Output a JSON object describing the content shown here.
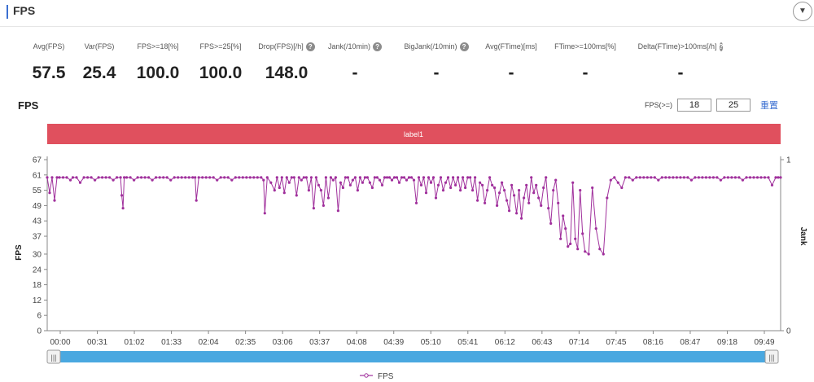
{
  "header": {
    "title": "FPS"
  },
  "metrics": [
    {
      "label": "Avg(FPS)",
      "value": "57.5",
      "help": false
    },
    {
      "label": "Var(FPS)",
      "value": "25.4",
      "help": false
    },
    {
      "label": "FPS>=18[%]",
      "value": "100.0",
      "help": false
    },
    {
      "label": "FPS>=25[%]",
      "value": "100.0",
      "help": false
    },
    {
      "label": "Drop(FPS)[/h]",
      "value": "148.0",
      "help": true
    },
    {
      "label": "Jank(/10min)",
      "value": "-",
      "help": true
    },
    {
      "label": "BigJank(/10min)",
      "value": "-",
      "help": true
    },
    {
      "label": "Avg(FTime)[ms]",
      "value": "-",
      "help": false
    },
    {
      "label": "FTime>=100ms[%]",
      "value": "-",
      "help": false
    },
    {
      "label": "Delta(FTime)>100ms[/h]",
      "value": "-",
      "help": true
    }
  ],
  "chart_section": {
    "title": "FPS",
    "filter_label": "FPS(>=)",
    "filter_low": "18",
    "filter_high": "25",
    "reset_label": "重置"
  },
  "colors": {
    "accent": "#3b6fd1",
    "label_band": "#e0505e",
    "series": "#a0309c",
    "scrollbar": "#4aa8e0"
  },
  "chart_data": {
    "type": "line",
    "title": "",
    "band_label": "label1",
    "ylabel": "FPS",
    "y2label": "Jank",
    "ylim": [
      0,
      67
    ],
    "yticks": [
      0,
      6,
      12,
      18,
      24,
      30,
      37,
      43,
      49,
      55,
      61,
      67
    ],
    "y2lim": [
      0,
      1
    ],
    "y2ticks": [
      0,
      1
    ],
    "xlim_seconds": [
      0,
      600
    ],
    "xtick_labels": [
      "00:00",
      "00:31",
      "01:02",
      "01:33",
      "02:04",
      "02:35",
      "03:06",
      "03:37",
      "04:08",
      "04:39",
      "05:10",
      "05:41",
      "06:12",
      "06:43",
      "07:14",
      "07:45",
      "08:16",
      "08:47",
      "09:18",
      "09:49"
    ],
    "legend": "FPS",
    "legend_position": "bottom-center",
    "grid": false,
    "series": [
      {
        "name": "FPS",
        "x": [
          0,
          2,
          4,
          6,
          8,
          10,
          13,
          16,
          19,
          21,
          24,
          27,
          30,
          33,
          36,
          39,
          42,
          45,
          48,
          51,
          54,
          57,
          60,
          61,
          62,
          63,
          65,
          68,
          71,
          74,
          77,
          80,
          83,
          86,
          89,
          92,
          95,
          98,
          101,
          104,
          107,
          110,
          113,
          116,
          119,
          121,
          122,
          124,
          127,
          130,
          133,
          136,
          139,
          142,
          145,
          148,
          151,
          154,
          157,
          160,
          163,
          166,
          169,
          172,
          175,
          177,
          178,
          180,
          183,
          186,
          188,
          190,
          192,
          194,
          196,
          198,
          200,
          202,
          204,
          206,
          208,
          210,
          212,
          214,
          216,
          218,
          220,
          222,
          224,
          226,
          228,
          230,
          232,
          234,
          236,
          238,
          240,
          242,
          244,
          246,
          248,
          250,
          252,
          254,
          256,
          258,
          260,
          262,
          264,
          266,
          268,
          270,
          272,
          274,
          276,
          278,
          280,
          282,
          284,
          286,
          288,
          290,
          292,
          294,
          296,
          298,
          300,
          302,
          304,
          306,
          308,
          310,
          312,
          314,
          316,
          318,
          320,
          322,
          324,
          326,
          328,
          330,
          332,
          334,
          336,
          338,
          340,
          342,
          344,
          346,
          348,
          350,
          352,
          354,
          356,
          358,
          360,
          362,
          364,
          366,
          368,
          370,
          372,
          374,
          376,
          378,
          380,
          382,
          384,
          386,
          388,
          390,
          392,
          394,
          396,
          398,
          400,
          402,
          404,
          406,
          408,
          410,
          412,
          414,
          416,
          418,
          420,
          422,
          424,
          426,
          428,
          430,
          432,
          434,
          436,
          438,
          440,
          443,
          446,
          449,
          452,
          455,
          458,
          461,
          464,
          467,
          470,
          473,
          476,
          479,
          482,
          485,
          488,
          491,
          494,
          497,
          500,
          503,
          506,
          509,
          512,
          515,
          518,
          521,
          524,
          527,
          530,
          533,
          536,
          539,
          542,
          545,
          548,
          551,
          554,
          557,
          560,
          563,
          566,
          569,
          572,
          575,
          578,
          581,
          584,
          587,
          590,
          593,
          596,
          598,
          600
        ],
        "values": [
          60,
          54,
          60,
          51,
          60,
          60,
          60,
          60,
          59,
          60,
          60,
          58,
          60,
          60,
          60,
          59,
          60,
          60,
          60,
          60,
          59,
          60,
          60,
          53,
          48,
          60,
          60,
          60,
          59,
          60,
          60,
          60,
          60,
          59,
          60,
          60,
          60,
          60,
          59,
          60,
          60,
          60,
          60,
          60,
          60,
          60,
          51,
          60,
          60,
          60,
          60,
          60,
          59,
          60,
          60,
          60,
          59,
          60,
          60,
          60,
          60,
          60,
          60,
          60,
          60,
          59,
          46,
          60,
          58,
          55,
          60,
          56,
          60,
          54,
          60,
          58,
          60,
          60,
          53,
          60,
          59,
          60,
          60,
          55,
          60,
          48,
          60,
          57,
          55,
          49,
          60,
          52,
          60,
          59,
          60,
          47,
          58,
          56,
          60,
          60,
          57,
          59,
          60,
          55,
          60,
          58,
          60,
          60,
          58,
          56,
          60,
          60,
          59,
          57,
          60,
          60,
          60,
          59,
          60,
          60,
          58,
          60,
          60,
          59,
          60,
          60,
          59,
          50,
          60,
          57,
          60,
          54,
          60,
          58,
          60,
          52,
          57,
          60,
          55,
          58,
          60,
          56,
          60,
          57,
          60,
          55,
          60,
          56,
          60,
          60,
          55,
          60,
          51,
          58,
          57,
          50,
          55,
          60,
          57,
          56,
          49,
          54,
          58,
          55,
          51,
          47,
          57,
          53,
          46,
          55,
          44,
          52,
          57,
          50,
          60,
          54,
          57,
          52,
          49,
          56,
          60,
          48,
          42,
          55,
          59,
          50,
          36,
          45,
          40,
          33,
          34,
          58,
          36,
          32,
          55,
          38,
          31,
          30,
          56,
          40,
          32,
          30,
          52,
          59,
          60,
          58,
          56,
          60,
          60,
          59,
          60,
          60,
          60,
          60,
          60,
          60,
          59,
          60,
          60,
          60,
          60,
          60,
          60,
          60,
          60,
          59,
          60,
          60,
          60,
          60,
          60,
          60,
          60,
          59,
          60,
          60,
          60,
          60,
          60,
          59,
          60,
          60,
          60,
          60,
          60,
          60,
          60,
          57,
          60,
          60,
          60
        ]
      }
    ]
  }
}
